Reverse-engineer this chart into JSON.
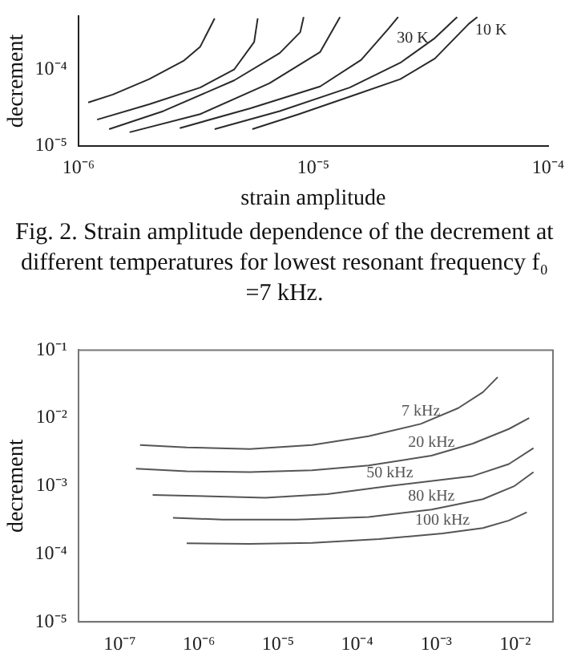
{
  "chart_data": [
    {
      "type": "line",
      "xlabel": "strain amplitude",
      "ylabel": "decrement",
      "log": "xy",
      "grid": false,
      "legend": false,
      "xlim": [
        1e-06,
        0.0001
      ],
      "ylim": [
        1e-05,
        0.0005
      ],
      "xticks": [
        {
          "value": 1e-06,
          "label": "10⁻⁶"
        },
        {
          "value": 1e-05,
          "label": "10⁻⁵"
        },
        {
          "value": 0.0001,
          "label": "10⁻⁴"
        }
      ],
      "yticks": [
        {
          "value": 1e-05,
          "label": "10⁻⁵"
        },
        {
          "value": 0.0001,
          "label": "10⁻⁴"
        }
      ],
      "annotations": [
        "Fig. 2.  Strain amplitude dependence of the decrement at different temperatures for lowest resonant frequency  f₀ =7 kHz."
      ],
      "series": [
        {
          "color": "#2a2a2a",
          "x": [
            1.1e-06,
            1.4e-06,
            2e-06,
            2.8e-06,
            3.3e-06,
            3.8e-06
          ],
          "values": [
            3.7e-05,
            4.7e-05,
            7.5e-05,
            0.00013,
            0.0002,
            0.00047
          ]
        },
        {
          "color": "#2a2a2a",
          "x": [
            1.2e-06,
            2e-06,
            3.3e-06,
            4.6e-06,
            5.6e-06,
            5.8e-06
          ],
          "values": [
            2.2e-05,
            3.5e-05,
            5.8e-05,
            0.0001,
            0.00023,
            0.00047
          ]
        },
        {
          "color": "#2a2a2a",
          "x": [
            1.35e-06,
            2.3e-06,
            4.6e-06,
            7.2e-06,
            8.8e-06,
            9.1e-06
          ],
          "values": [
            1.65e-05,
            2.85e-05,
            7.2e-05,
            0.000165,
            0.00031,
            0.00049
          ]
        },
        {
          "color": "#2a2a2a",
          "x": [
            1.65e-06,
            3.3e-06,
            6.5e-06,
            1.07e-05,
            1.3e-05
          ],
          "values": [
            1.5e-05,
            2.6e-05,
            6.6e-05,
            0.00017,
            0.00049
          ]
        },
        {
          "color": "#2a2a2a",
          "x": [
            2.7e-06,
            5.4e-06,
            1.07e-05,
            1.6e-05,
            2.1e-05,
            2.3e-05
          ],
          "values": [
            1.7e-05,
            3.1e-05,
            6e-05,
            0.000134,
            0.00035,
            0.00049
          ]
        },
        {
          "name": "30 K",
          "color": "#2a2a2a",
          "x": [
            3.8e-06,
            7.2e-06,
            1.43e-05,
            2.35e-05,
            3.3e-05,
            4.1e-05
          ],
          "values": [
            1.65e-05,
            2.85e-05,
            5.8e-05,
            0.000123,
            0.00026,
            0.00049
          ]
        },
        {
          "name": "10 K",
          "color": "#2a2a2a",
          "x": [
            5.5e-06,
            8.7e-06,
            1.43e-05,
            2.35e-05,
            3.3e-05,
            4.6e-05,
            5e-05
          ],
          "values": [
            1.65e-05,
            2.6e-05,
            4.4e-05,
            7.5e-05,
            0.00014,
            0.0004,
            0.00049
          ]
        }
      ]
    },
    {
      "type": "line",
      "ylabel": "decrement",
      "log": "xy",
      "grid": false,
      "legend": false,
      "xlim": [
        3e-08,
        0.03
      ],
      "ylim": [
        1e-05,
        0.1
      ],
      "xticks": [
        {
          "value": 1e-07,
          "label": "10⁻⁷"
        },
        {
          "value": 1e-06,
          "label": "10⁻⁶"
        },
        {
          "value": 1e-05,
          "label": "10⁻⁵"
        },
        {
          "value": 0.0001,
          "label": "10⁻⁴"
        },
        {
          "value": 0.001,
          "label": "10⁻³"
        },
        {
          "value": 0.01,
          "label": "10⁻²"
        }
      ],
      "yticks": [
        {
          "value": 1e-05,
          "label": "10⁻⁵"
        },
        {
          "value": 0.0001,
          "label": "10⁻⁴"
        },
        {
          "value": 0.001,
          "label": "10⁻³"
        },
        {
          "value": 0.01,
          "label": "10⁻²"
        },
        {
          "value": 0.1,
          "label": "10⁻¹"
        }
      ],
      "series": [
        {
          "name": "7 kHz",
          "color": "#555555",
          "x": [
            1.8e-07,
            7e-07,
            4.4e-06,
            2.7e-05,
            0.00014,
            0.00064,
            0.0019,
            0.0039,
            0.006
          ],
          "values": [
            0.004,
            0.0037,
            0.0035,
            0.004,
            0.0054,
            0.0082,
            0.014,
            0.024,
            0.04
          ]
        },
        {
          "name": "20 kHz",
          "color": "#555555",
          "x": [
            1.6e-07,
            7e-07,
            4.4e-06,
            2.7e-05,
            0.00014,
            0.00087,
            0.0029,
            0.0083,
            0.015
          ],
          "values": [
            0.0018,
            0.00165,
            0.0016,
            0.0017,
            0.002,
            0.0028,
            0.0042,
            0.0069,
            0.01
          ]
        },
        {
          "name": "50 kHz",
          "color": "#555555",
          "x": [
            2.6e-07,
            7e-07,
            6.9e-06,
            4.2e-05,
            0.00026,
            0.0029,
            0.0083,
            0.017
          ],
          "values": [
            0.00074,
            0.00072,
            0.00067,
            0.00076,
            0.001,
            0.0014,
            0.0021,
            0.0036
          ]
        },
        {
          "name": "80 kHz",
          "color": "#555555",
          "x": [
            4.7e-07,
            2e-06,
            1.7e-05,
            0.00014,
            0.00087,
            0.0039,
            0.0098,
            0.017
          ],
          "values": [
            0.00034,
            0.00032,
            0.00032,
            0.00035,
            0.00045,
            0.00064,
            0.001,
            0.0016
          ]
        },
        {
          "name": "100 kHz",
          "color": "#555555",
          "x": [
            7e-07,
            4.4e-06,
            2.7e-05,
            0.00019,
            0.0012,
            0.0039,
            0.0083,
            0.014
          ],
          "values": [
            0.000143,
            0.00014,
            0.000145,
            0.000165,
            0.0002,
            0.00024,
            0.00031,
            0.00041
          ]
        }
      ]
    }
  ]
}
